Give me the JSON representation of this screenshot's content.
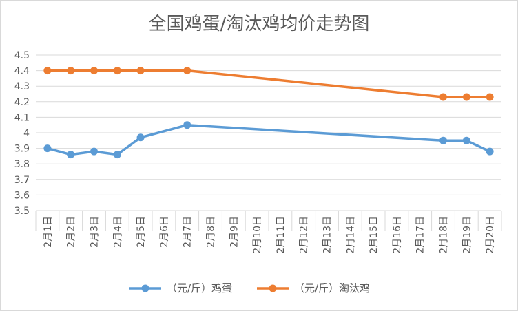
{
  "chart_data": {
    "type": "line",
    "title": "全国鸡蛋/淘汰鸡均价走势图",
    "categories": [
      "2月1日",
      "2月2日",
      "2月3日",
      "2月4日",
      "2月5日",
      "2月6日",
      "2月7日",
      "2月8日",
      "2月9日",
      "2月10日",
      "2月11日",
      "2月12日",
      "2月13日",
      "2月14日",
      "2月15日",
      "2月16日",
      "2月17日",
      "2月18日",
      "2月19日",
      "2月20日"
    ],
    "yticks": [
      "3.5",
      "3.6",
      "3.7",
      "3.8",
      "3.9",
      "4",
      "4.1",
      "4.2",
      "4.3",
      "4.4",
      "4.5"
    ],
    "ylim": [
      3.5,
      4.5
    ],
    "grid": true,
    "legend_position": "bottom",
    "series": [
      {
        "name": "（元/斤）鸡蛋",
        "color": "#5b9bd5",
        "values": [
          3.9,
          3.86,
          3.88,
          3.86,
          3.97,
          null,
          4.05,
          null,
          null,
          null,
          null,
          null,
          null,
          null,
          null,
          null,
          null,
          3.95,
          3.95,
          3.88
        ]
      },
      {
        "name": "（元/斤）淘汰鸡",
        "color": "#ed7d31",
        "values": [
          4.4,
          4.4,
          4.4,
          4.4,
          4.4,
          null,
          4.4,
          null,
          null,
          null,
          null,
          null,
          null,
          null,
          null,
          null,
          null,
          4.23,
          4.23,
          4.23
        ]
      }
    ]
  }
}
